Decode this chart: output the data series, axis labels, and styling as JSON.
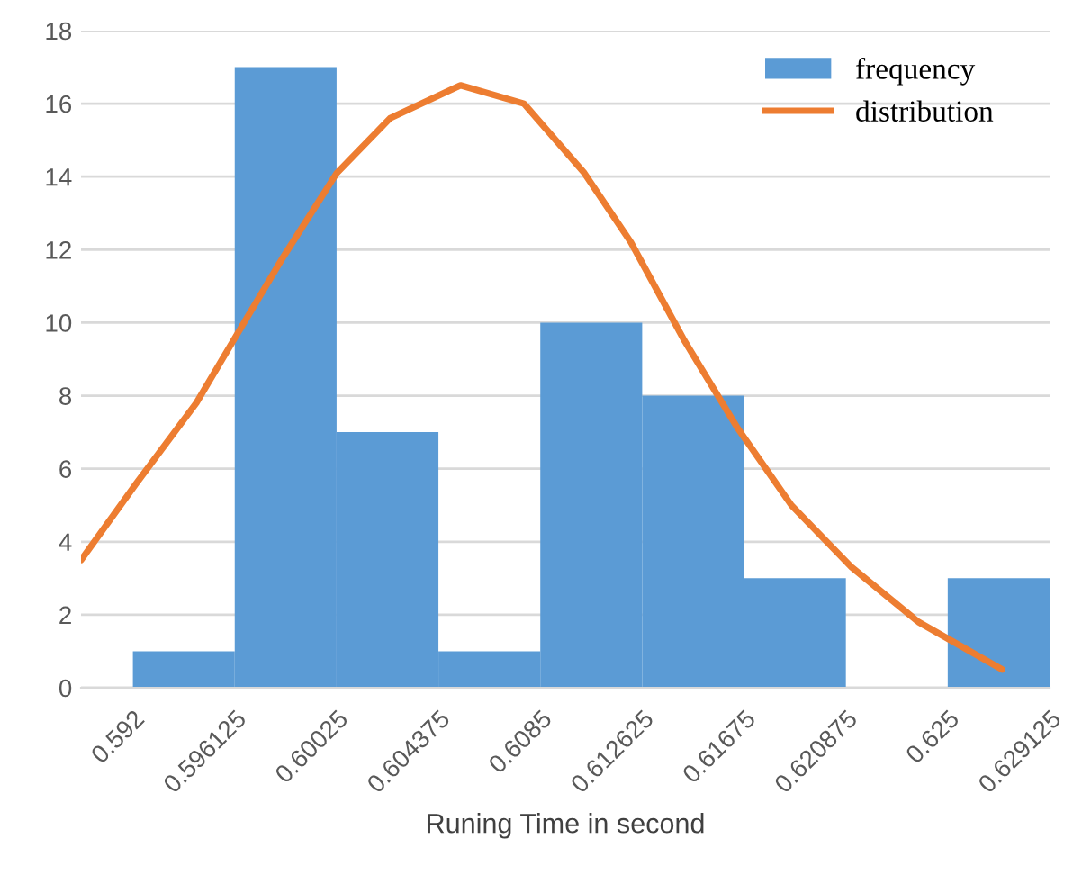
{
  "chart_data": {
    "type": "histogram",
    "xlabel": "Runing Time in second",
    "bins": [
      0.592,
      0.596125,
      0.60025,
      0.604375,
      0.6085,
      0.612625,
      0.61675,
      0.620875,
      0.625,
      0.629125
    ],
    "series": [
      {
        "name": "frequency",
        "color": "#5b9bd5",
        "values": [
          1,
          17,
          7,
          1,
          10,
          8,
          3,
          0,
          3
        ]
      },
      {
        "name": "distribution",
        "type": "line",
        "color": "#ed7d31",
        "x": [
          0.5899,
          0.59214,
          0.59457,
          0.59606,
          0.59809,
          0.60026,
          0.60242,
          0.60527,
          0.60784,
          0.61028,
          0.61217,
          0.61434,
          0.6165,
          0.61867,
          0.62111,
          0.62382,
          0.6272
        ],
        "values": [
          3.5,
          5.6,
          7.8,
          9.5,
          11.8,
          14.1,
          15.6,
          16.5,
          16.0,
          14.1,
          12.2,
          9.5,
          7.1,
          5.0,
          3.3,
          1.8,
          0.5
        ]
      }
    ],
    "xlim": [
      0.5899,
      0.629125
    ],
    "xticks": [
      0.592,
      0.596125,
      0.60025,
      0.604375,
      0.6085,
      0.612625,
      0.61675,
      0.620875,
      0.625,
      0.629125
    ],
    "ylim": [
      0,
      18
    ],
    "yticks": [
      0,
      2,
      4,
      6,
      8,
      10,
      12,
      14,
      16,
      18
    ],
    "grid": "y",
    "legend": "top right",
    "marker": "none",
    "line_style": "solid"
  }
}
